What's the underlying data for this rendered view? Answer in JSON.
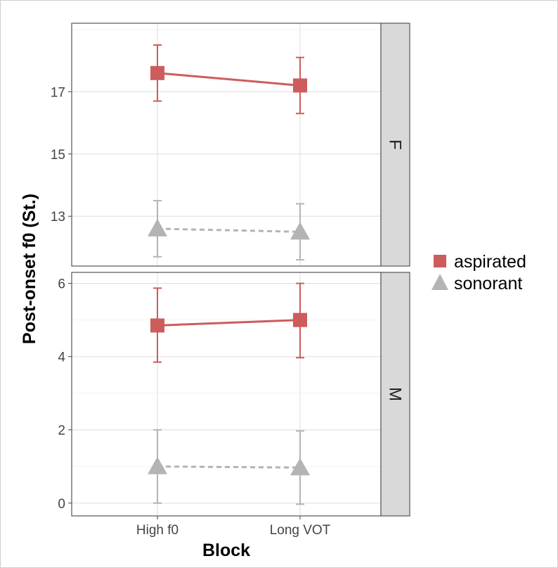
{
  "chart_data": {
    "type": "line",
    "xlabel": "Block",
    "ylabel": "Post-onset f0 (St.)",
    "categories": [
      "High f0",
      "Long VOT"
    ],
    "legend": {
      "placement": "right",
      "entries": [
        "aspirated",
        "sonorant"
      ]
    },
    "colors": {
      "aspirated": "#cd5c5c",
      "sonorant": "#b4b4b4"
    },
    "grid": true,
    "panels": [
      {
        "facet": "F",
        "ylim": [
          11.4,
          19.2
        ],
        "yticks": [
          "13",
          "15",
          "17"
        ],
        "series": [
          {
            "name": "aspirated",
            "marker": "square",
            "line": "solid",
            "values": [
              17.6,
              17.2
            ],
            "lower": [
              16.7,
              16.3
            ],
            "upper": [
              18.5,
              18.1
            ]
          },
          {
            "name": "sonorant",
            "marker": "triangle",
            "line": "dashed",
            "values": [
              12.6,
              12.5
            ],
            "lower": [
              11.7,
              11.6
            ],
            "upper": [
              13.5,
              13.4
            ]
          }
        ]
      },
      {
        "facet": "M",
        "ylim": [
          -0.35,
          6.3
        ],
        "yticks": [
          "0",
          "2",
          "4",
          "6"
        ],
        "series": [
          {
            "name": "aspirated",
            "marker": "square",
            "line": "solid",
            "values": [
              4.85,
              5.0
            ],
            "lower": [
              3.85,
              3.97
            ],
            "upper": [
              5.87,
              6.0
            ]
          },
          {
            "name": "sonorant",
            "marker": "triangle",
            "line": "dashed",
            "values": [
              1.0,
              0.97
            ],
            "lower": [
              0.0,
              -0.03
            ],
            "upper": [
              2.0,
              1.97
            ]
          }
        ]
      }
    ]
  }
}
